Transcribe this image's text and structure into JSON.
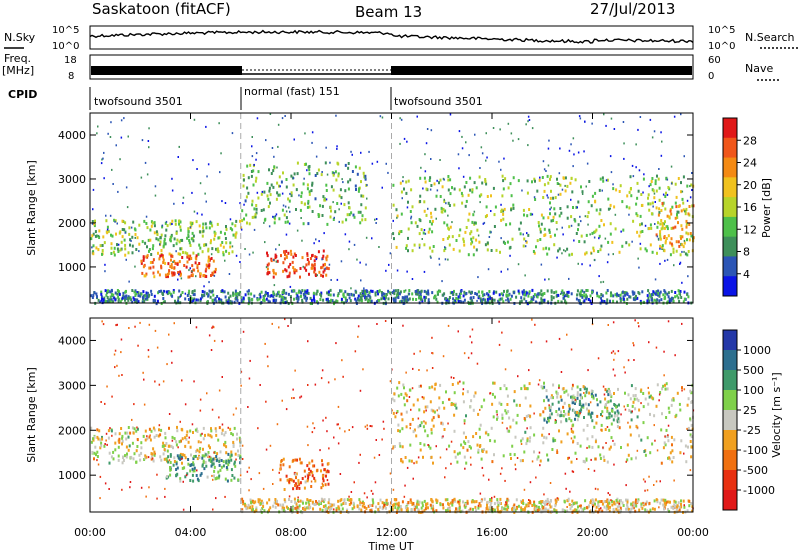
{
  "header": {
    "station": "Saskatoon (fitACF)",
    "beam": "Beam 13",
    "date": "27/Jul/2013"
  },
  "top_panels": {
    "nsky_label": "N.Sky",
    "nsearch_label": "N.Search",
    "nsky_ticks": [
      "10^5",
      "10^0"
    ],
    "freq_label_1": "Freq.",
    "freq_label_2": "[MHz]",
    "freq_ticks": [
      "18",
      "8"
    ],
    "nave_label": "Nave",
    "nave_ticks": [
      "60",
      "0"
    ],
    "cpid_label": "CPID",
    "cpid_segments": [
      "twofsound 3501",
      "normal (fast) 151",
      "twofsound 3501"
    ]
  },
  "power_panel": {
    "ylabel": "Slant Range [km]",
    "yticks": [
      "4000",
      "3000",
      "2000",
      "1000"
    ],
    "colorbar_label": "Power [dB]",
    "colorbar_ticks": [
      "28",
      "24",
      "20",
      "16",
      "12",
      "8",
      "4"
    ],
    "colors": [
      "#0a14e6",
      "#2b55b5",
      "#3e8f5a",
      "#4ec04a",
      "#b7d42a",
      "#f0c21f",
      "#f48a14",
      "#f0561a",
      "#e01818"
    ]
  },
  "velocity_panel": {
    "ylabel": "Slant Range [km]",
    "yticks": [
      "4000",
      "3000",
      "2000",
      "1000"
    ],
    "colorbar_label": "Velocity [m s⁻¹]",
    "colorbar_ticks": [
      "1000",
      "500",
      "100",
      "25",
      "-25",
      "-100",
      "-500",
      "-1000"
    ],
    "colors": [
      "#2438a8",
      "#2d6f8f",
      "#3f9a6a",
      "#7fd04a",
      "#c8c8c0",
      "#f0a020",
      "#f07010",
      "#e83010",
      "#e01818"
    ]
  },
  "xaxis": {
    "ticks": [
      "00:00",
      "04:00",
      "08:00",
      "12:00",
      "16:00",
      "20:00",
      "00:00"
    ],
    "label": "Time UT"
  },
  "chart_data": {
    "type": "heatmap",
    "title": "Saskatoon (fitACF)",
    "xlabel": "Time UT",
    "ylabel": "Slant Range [km]",
    "xlim": [
      "00:00",
      "24:00"
    ],
    "ylim": [
      180,
      4500
    ],
    "mode_changes_ut": [
      "06:00",
      "12:00"
    ],
    "power_regions": [
      {
        "t_start": 0.0,
        "t_end": 6.0,
        "range_start": 1300,
        "range_end": 2100,
        "power_db": 14
      },
      {
        "t_start": 2.0,
        "t_end": 5.0,
        "range_start": 800,
        "range_end": 1300,
        "power_db": 26
      },
      {
        "t_start": 7.0,
        "t_end": 9.5,
        "range_start": 800,
        "range_end": 1400,
        "power_db": 28
      },
      {
        "t_start": 6.0,
        "t_end": 11.0,
        "range_start": 2000,
        "range_end": 3400,
        "power_db": 12
      },
      {
        "t_start": 12.0,
        "t_end": 24.0,
        "range_start": 1300,
        "range_end": 3100,
        "power_db": 14
      },
      {
        "t_start": 22.5,
        "t_end": 24.0,
        "range_start": 1500,
        "range_end": 2500,
        "power_db": 22
      },
      {
        "t_start": 0.0,
        "t_end": 24.0,
        "range_start": 200,
        "range_end": 500,
        "power_db": 8
      }
    ],
    "velocity_regions": [
      {
        "t_start": 0.0,
        "t_end": 6.0,
        "range_start": 1300,
        "range_end": 2100,
        "velocity": 0
      },
      {
        "t_start": 3.0,
        "t_end": 6.0,
        "range_start": 900,
        "range_end": 1500,
        "velocity": 500
      },
      {
        "t_start": 7.5,
        "t_end": 9.5,
        "range_start": 700,
        "range_end": 1400,
        "velocity": -500
      },
      {
        "t_start": 6.0,
        "t_end": 24.0,
        "range_start": 200,
        "range_end": 500,
        "velocity": -100
      },
      {
        "t_start": 18.0,
        "t_end": 21.0,
        "range_start": 2200,
        "range_end": 3000,
        "velocity": 500
      },
      {
        "t_start": 12.0,
        "t_end": 24.0,
        "range_start": 1300,
        "range_end": 3100,
        "velocity": 0
      }
    ]
  }
}
